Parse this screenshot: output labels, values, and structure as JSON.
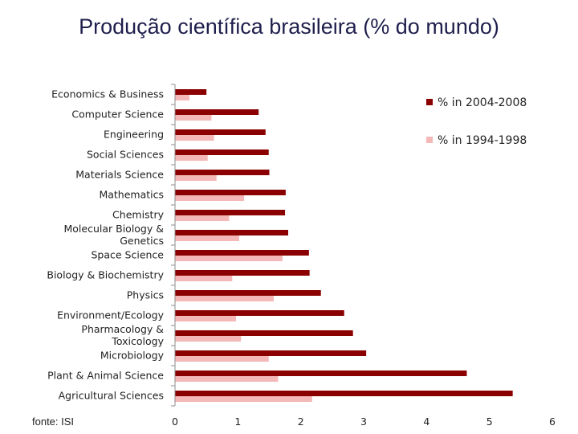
{
  "title": "Produção científica brasileira (% do mundo)",
  "source": "fonte: ISI",
  "chart_data": {
    "type": "bar",
    "orientation": "horizontal",
    "title": "Produção científica brasileira (% do mundo)",
    "xlabel": "",
    "ylabel": "",
    "xlim": [
      0,
      6
    ],
    "x_ticks": [
      "0",
      "1",
      "2",
      "3",
      "4",
      "5",
      "6"
    ],
    "grid": false,
    "legend_position": "top-right",
    "categories": [
      "Economics & Business",
      "Computer Science",
      "Engineering",
      "Social Sciences",
      "Materials Science",
      "Mathematics",
      "Chemistry",
      "Molecular Biology & Genetics",
      "Space Science",
      "Biology & Biochemistry",
      "Physics",
      "Environment/Ecology",
      "Pharmacology & Toxicology",
      "Microbiology",
      "Plant & Animal Science",
      "Agricultural Sciences"
    ],
    "category_lines": [
      [
        "Economics & Business"
      ],
      [
        "Computer Science"
      ],
      [
        "Engineering"
      ],
      [
        "Social Sciences"
      ],
      [
        "Materials Science"
      ],
      [
        "Mathematics"
      ],
      [
        "Chemistry"
      ],
      [
        "Molecular Biology &",
        "Genetics"
      ],
      [
        "Space Science"
      ],
      [
        "Biology & Biochemistry"
      ],
      [
        "Physics"
      ],
      [
        "Environment/Ecology"
      ],
      [
        "Pharmacology &",
        "Toxicology"
      ],
      [
        "Microbiology"
      ],
      [
        "Plant & Animal Science"
      ],
      [
        "Agricultural Sciences"
      ]
    ],
    "series": [
      {
        "name": "% in 2004-2008",
        "color": "#8b0000",
        "values": [
          0.5,
          1.33,
          1.44,
          1.49,
          1.5,
          1.76,
          1.75,
          1.8,
          2.13,
          2.14,
          2.32,
          2.69,
          2.83,
          3.04,
          4.64,
          5.37
        ]
      },
      {
        "name": "% in 1994-1998",
        "color": "#f4b8b8",
        "values": [
          0.23,
          0.58,
          0.62,
          0.52,
          0.66,
          1.1,
          0.86,
          1.02,
          1.71,
          0.91,
          1.57,
          0.97,
          1.05,
          1.49,
          1.64,
          2.18
        ]
      }
    ]
  }
}
